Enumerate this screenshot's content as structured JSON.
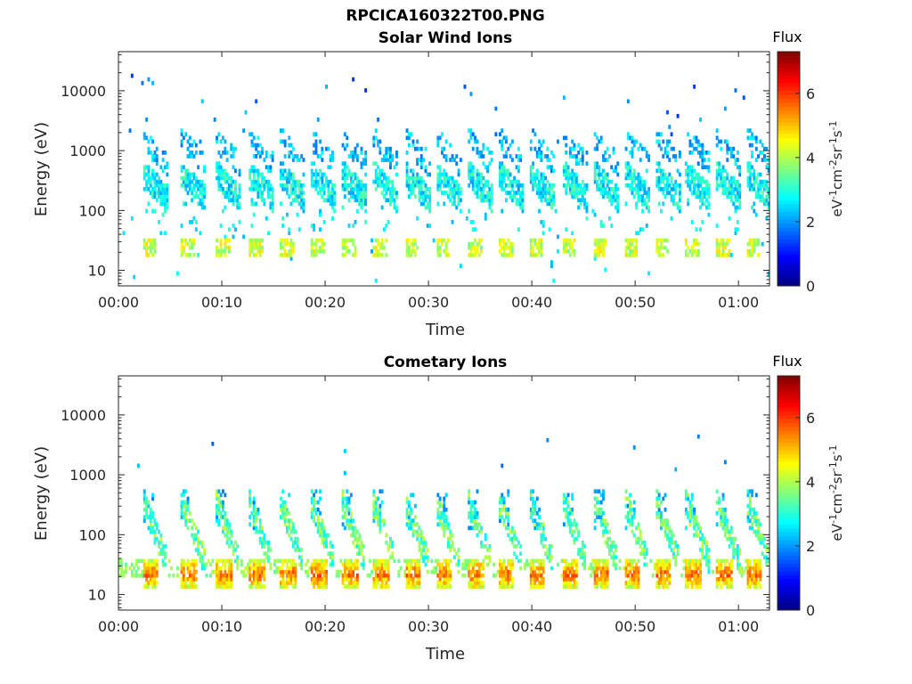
{
  "figure": {
    "title": "RPCICA160322T00.PNG"
  },
  "chart_data": [
    {
      "type": "heatmap",
      "title": "Solar Wind Ions",
      "xlabel": "Time",
      "ylabel": "Energy (eV)",
      "x_ticks": [
        "00:00",
        "00:10",
        "00:20",
        "00:30",
        "00:40",
        "00:50",
        "01:00"
      ],
      "x_tick_minutes": [
        0,
        10,
        20,
        30,
        40,
        50,
        60
      ],
      "xlim_minutes": [
        0,
        63
      ],
      "y_scale": "log",
      "y_ticks": [
        "10",
        "100",
        "1000",
        "10000"
      ],
      "y_tick_values": [
        10,
        100,
        1000,
        10000
      ],
      "ylim": [
        5.5,
        45000
      ],
      "grid": false,
      "colorbar": {
        "label_top": "Flux",
        "unit": "eV-1cm-2sr-1s-1",
        "ticks": [
          "0",
          "2",
          "4",
          "6"
        ],
        "tick_values": [
          0,
          2,
          4,
          6
        ],
        "range": [
          0,
          7.3
        ],
        "colormap": "jet"
      },
      "pattern": {
        "pulse_start_minutes": [
          2.3,
          6.0,
          9.3,
          12.5,
          15.5,
          18.5,
          21.5,
          24.5,
          27.6,
          30.6,
          33.7,
          36.7,
          39.7,
          42.9,
          45.9,
          48.9,
          51.9,
          54.8,
          57.8,
          60.7
        ],
        "main_band_energy_ev": [
          250,
          700
        ],
        "high_band_energy_ev": [
          1000,
          2500
        ],
        "low_band_energy_ev": [
          17,
          35
        ],
        "main_flux": 2.6,
        "low_flux": 4.2
      }
    },
    {
      "type": "heatmap",
      "title": "Cometary Ions",
      "xlabel": "Time",
      "ylabel": "Energy (eV)",
      "x_ticks": [
        "00:00",
        "00:10",
        "00:20",
        "00:30",
        "00:40",
        "00:50",
        "01:00"
      ],
      "x_tick_minutes": [
        0,
        10,
        20,
        30,
        40,
        50,
        60
      ],
      "xlim_minutes": [
        0,
        63
      ],
      "y_scale": "log",
      "y_ticks": [
        "10",
        "100",
        "1000",
        "10000"
      ],
      "y_tick_values": [
        10,
        100,
        1000,
        10000
      ],
      "ylim": [
        5.5,
        45000
      ],
      "grid": false,
      "colorbar": {
        "label_top": "Flux",
        "unit": "eV-1cm-2sr-1s-1",
        "ticks": [
          "0",
          "2",
          "4",
          "6"
        ],
        "tick_values": [
          0,
          2,
          4,
          6
        ],
        "range": [
          0,
          7.3
        ],
        "colormap": "jet"
      },
      "pattern": {
        "pulse_start_minutes": [
          2.3,
          6.0,
          9.3,
          12.5,
          15.5,
          18.5,
          21.5,
          24.5,
          27.6,
          30.6,
          33.7,
          36.7,
          39.7,
          42.9,
          45.9,
          48.9,
          51.9,
          54.8,
          57.8,
          60.7
        ],
        "arc_energy_ev": [
          40,
          400
        ],
        "low_band_energy_ev": [
          12,
          40
        ],
        "arc_flux": 3.4,
        "low_flux_peak": 6.2
      }
    }
  ]
}
